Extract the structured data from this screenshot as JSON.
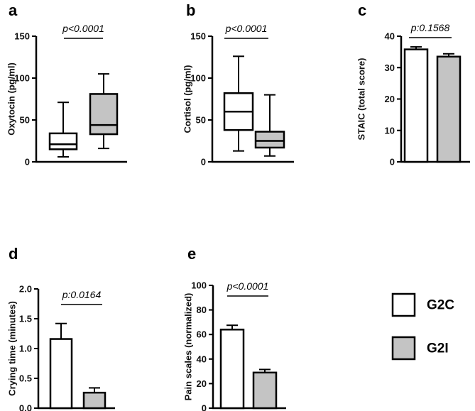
{
  "colors": {
    "G2C": "#ffffff",
    "G2I": "#c4c4c4",
    "stroke": "#000000"
  },
  "legend": {
    "items": [
      {
        "label": "G2C",
        "color": "#ffffff"
      },
      {
        "label": "G2I",
        "color": "#c4c4c4"
      }
    ],
    "placement": "right"
  },
  "chart_data": [
    {
      "id": "a",
      "panel": "a",
      "type": "box",
      "ylabel": "Oxytocin (pg/ml)",
      "ylim": [
        0,
        150
      ],
      "yticks": [
        0,
        50,
        100,
        150
      ],
      "annotation": "p<0.0001",
      "series": [
        {
          "name": "G2C",
          "min": 6,
          "q1": 15,
          "median": 21,
          "q3": 34,
          "max": 71
        },
        {
          "name": "G2I",
          "min": 16,
          "q1": 33,
          "median": 44,
          "q3": 81,
          "max": 105
        }
      ]
    },
    {
      "id": "b",
      "panel": "b",
      "type": "box",
      "ylabel": "Cortisol (pg/ml)",
      "ylim": [
        0,
        150
      ],
      "yticks": [
        0,
        50,
        100,
        150
      ],
      "annotation": "p<0.0001",
      "series": [
        {
          "name": "G2C",
          "min": 13,
          "q1": 38,
          "median": 60,
          "q3": 82,
          "max": 126
        },
        {
          "name": "G2I",
          "min": 7,
          "q1": 17,
          "median": 25,
          "q3": 36,
          "max": 80
        }
      ]
    },
    {
      "id": "c",
      "panel": "c",
      "type": "bar",
      "ylabel": "STAIC (total score)",
      "ylim": [
        0,
        40
      ],
      "yticks": [
        0,
        10,
        20,
        30,
        40
      ],
      "annotation": "p:0.1568",
      "series": [
        {
          "name": "G2C",
          "value": 35.8,
          "err": 0.8
        },
        {
          "name": "G2I",
          "value": 33.5,
          "err": 0.9
        }
      ]
    },
    {
      "id": "d",
      "panel": "d",
      "type": "bar",
      "ylabel": "Crying time (minutes)",
      "ylim": [
        0,
        2
      ],
      "yticks": [
        "0.0",
        "0.5",
        "1.0",
        "1.5",
        "2.0"
      ],
      "annotation": "p:0.0164",
      "series": [
        {
          "name": "G2C",
          "value": 1.16,
          "err": 0.26
        },
        {
          "name": "G2I",
          "value": 0.26,
          "err": 0.08
        }
      ]
    },
    {
      "id": "e",
      "panel": "e",
      "type": "bar",
      "ylabel": "Pain scales (normalized)",
      "ylim": [
        0,
        100
      ],
      "yticks": [
        0,
        20,
        40,
        60,
        80,
        100
      ],
      "annotation": "p<0.0001",
      "series": [
        {
          "name": "G2C",
          "value": 64,
          "err": 3.5
        },
        {
          "name": "G2I",
          "value": 29,
          "err": 2.5
        }
      ]
    }
  ]
}
